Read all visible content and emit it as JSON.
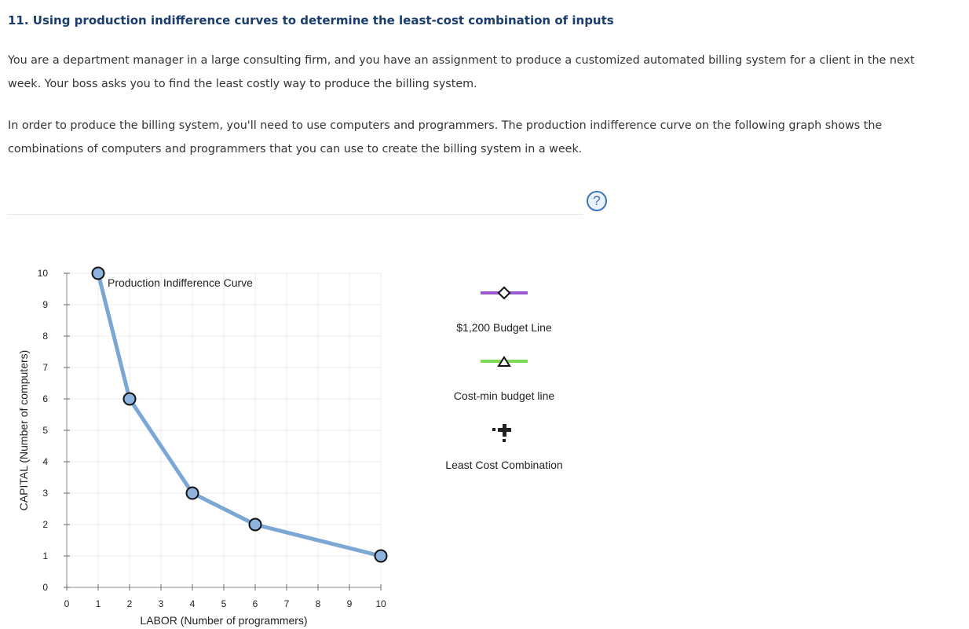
{
  "question": {
    "title": "11. Using production indifference curves to determine the least-cost combination of inputs",
    "paragraphs": [
      "You are a department manager in a large consulting firm, and you have an assignment to produce a customized automated billing system for a client in the next week. Your boss asks you to find the least costly way to produce the billing system.",
      "In order to produce the billing system, you'll need to use computers and programmers. The production indifference curve on the following graph shows the combinations of computers and programmers that you can use to create the billing system in a week."
    ],
    "help_symbol": "?"
  },
  "graph": {
    "curve_label": "Production Indifference Curve",
    "legend": [
      {
        "label": "$1,200 Budget Line",
        "color": "#9b59d0",
        "marker": "diamond-icon"
      },
      {
        "label": "Cost-min budget line",
        "color": "#7ed957",
        "marker": "triangle-icon"
      },
      {
        "label": "Least Cost Combination",
        "color": "#222222",
        "marker": "plus-icon"
      }
    ]
  },
  "chart_data": {
    "type": "line",
    "title": "",
    "xlabel": "LABOR (Number of programmers)",
    "ylabel": "CAPITAL (Number of computers)",
    "xlim": [
      0,
      10
    ],
    "ylim": [
      0,
      10
    ],
    "x_ticks": [
      0,
      1,
      2,
      3,
      4,
      5,
      6,
      7,
      8,
      9,
      10
    ],
    "y_ticks": [
      0,
      1,
      2,
      3,
      4,
      5,
      6,
      7,
      8,
      9,
      10
    ],
    "grid": true,
    "series": [
      {
        "name": "Production Indifference Curve",
        "color": "#7ba7d4",
        "x": [
          1,
          2,
          4,
          6,
          10
        ],
        "y": [
          10,
          6,
          3,
          2,
          1
        ]
      }
    ]
  }
}
